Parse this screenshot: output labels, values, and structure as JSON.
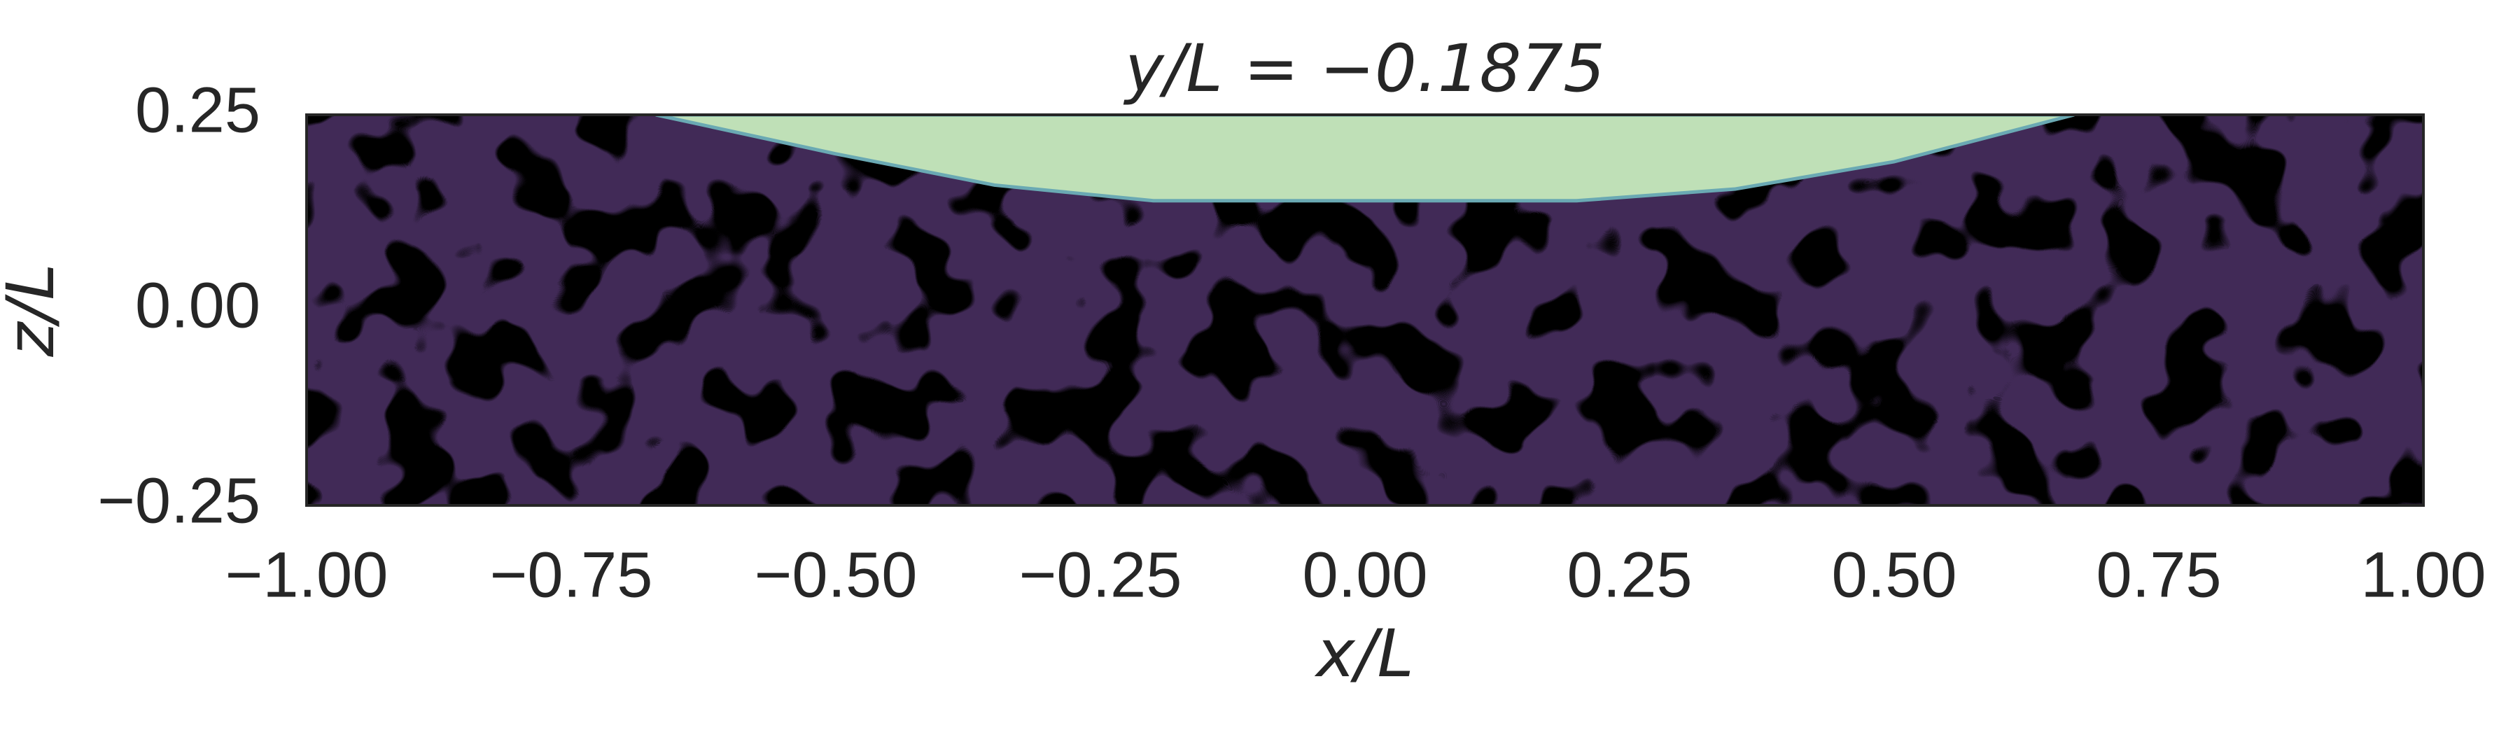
{
  "chart_data": {
    "type": "contour",
    "title": "y/L = −0.1875",
    "xlabel": "x/L",
    "ylabel": "z/L",
    "xlim": [
      -1,
      1
    ],
    "ylim": [
      -0.25,
      0.25
    ],
    "xticks": [
      {
        "value": -1,
        "label": "−1.00"
      },
      {
        "value": -0.75,
        "label": "−0.75"
      },
      {
        "value": -0.5,
        "label": "−0.50"
      },
      {
        "value": -0.25,
        "label": "−0.25"
      },
      {
        "value": 0,
        "label": "0.00"
      },
      {
        "value": 0.25,
        "label": "0.25"
      },
      {
        "value": 0.5,
        "label": "0.50"
      },
      {
        "value": 0.75,
        "label": "0.75"
      },
      {
        "value": 1,
        "label": "1.00"
      }
    ],
    "yticks": [
      {
        "value": -0.25,
        "label": "−0.25"
      },
      {
        "value": 0,
        "label": "0.00"
      },
      {
        "value": 0.25,
        "label": "0.25"
      }
    ],
    "background_color": "#412a57",
    "interface": {
      "color": "#bfe0b7",
      "edge_color": "#6aa9b3",
      "x": [
        -0.67,
        -0.5,
        -0.35,
        -0.2,
        0,
        0.2,
        0.35,
        0.5,
        0.67
      ],
      "z": [
        0.25,
        0.2,
        0.16,
        0.14,
        0.14,
        0.14,
        0.155,
        0.19,
        0.25
      ]
    }
  }
}
